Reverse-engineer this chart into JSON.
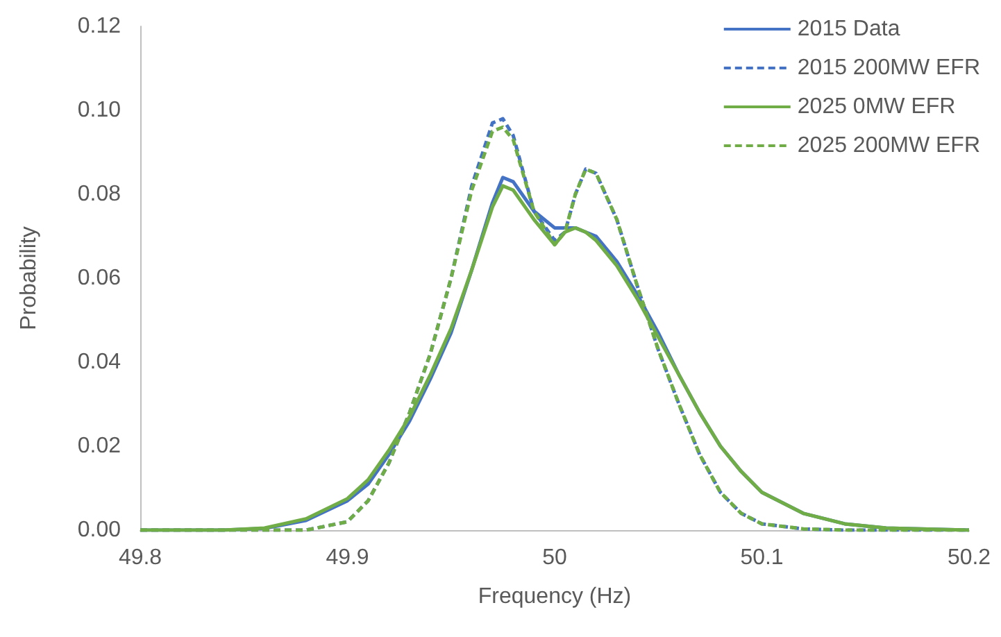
{
  "chart_data": {
    "type": "line",
    "xlabel": "Frequency (Hz)",
    "ylabel": "Probability",
    "x": [
      49.8,
      49.84,
      49.86,
      49.88,
      49.9,
      49.91,
      49.92,
      49.93,
      49.94,
      49.95,
      49.96,
      49.97,
      49.975,
      49.98,
      49.99,
      50.0,
      50.005,
      50.01,
      50.015,
      50.02,
      50.03,
      50.04,
      50.05,
      50.06,
      50.07,
      50.08,
      50.09,
      50.1,
      50.12,
      50.14,
      50.16,
      50.2
    ],
    "series": [
      {
        "name": "2015 Data",
        "color": "#4472c4",
        "line_style": "solid",
        "values": [
          0,
          0,
          0.0004,
          0.0023,
          0.007,
          0.011,
          0.018,
          0.026,
          0.036,
          0.047,
          0.062,
          0.078,
          0.084,
          0.083,
          0.076,
          0.072,
          0.072,
          0.072,
          0.071,
          0.07,
          0.064,
          0.056,
          0.047,
          0.037,
          0.028,
          0.02,
          0.014,
          0.009,
          0.004,
          0.0015,
          0.0005,
          0
        ]
      },
      {
        "name": "2015 200MW EFR",
        "color": "#4472c4",
        "line_style": "dashed",
        "values": [
          0,
          0,
          0,
          0,
          0.002,
          0.007,
          0.016,
          0.028,
          0.042,
          0.06,
          0.082,
          0.097,
          0.098,
          0.094,
          0.076,
          0.069,
          0.071,
          0.08,
          0.086,
          0.085,
          0.074,
          0.058,
          0.043,
          0.03,
          0.018,
          0.009,
          0.004,
          0.0015,
          0.0003,
          0,
          0,
          0
        ]
      },
      {
        "name": "2025 0MW EFR",
        "color": "#70ad47",
        "line_style": "solid",
        "values": [
          0,
          0,
          0.0005,
          0.0027,
          0.0075,
          0.012,
          0.019,
          0.027,
          0.037,
          0.048,
          0.062,
          0.077,
          0.082,
          0.081,
          0.074,
          0.068,
          0.071,
          0.072,
          0.071,
          0.069,
          0.063,
          0.055,
          0.046,
          0.037,
          0.028,
          0.02,
          0.014,
          0.009,
          0.004,
          0.0015,
          0.0005,
          0
        ]
      },
      {
        "name": "2025 200MW EFR",
        "color": "#70ad47",
        "line_style": "dashed",
        "values": [
          0,
          0,
          0,
          0,
          0.002,
          0.007,
          0.016,
          0.028,
          0.042,
          0.06,
          0.081,
          0.095,
          0.096,
          0.093,
          0.076,
          0.068,
          0.071,
          0.08,
          0.086,
          0.085,
          0.074,
          0.058,
          0.043,
          0.03,
          0.018,
          0.009,
          0.004,
          0.0015,
          0.0003,
          0,
          0,
          0
        ]
      }
    ],
    "xlim": [
      49.8,
      50.2
    ],
    "xticks": [
      49.8,
      49.9,
      50,
      50.1,
      50.2
    ],
    "ylim": [
      0,
      0.12
    ],
    "yticks": [
      {
        "value": 0,
        "label": "0.00"
      },
      {
        "value": 0.02,
        "label": "0.02"
      },
      {
        "value": 0.04,
        "label": "0.04"
      },
      {
        "value": 0.06,
        "label": "0.06"
      },
      {
        "value": 0.08,
        "label": "0.08"
      },
      {
        "value": 0.1,
        "label": "0.10"
      },
      {
        "value": 0.12,
        "label": "0.12"
      }
    ],
    "grid": false,
    "legend": "top right",
    "marker": "none"
  }
}
